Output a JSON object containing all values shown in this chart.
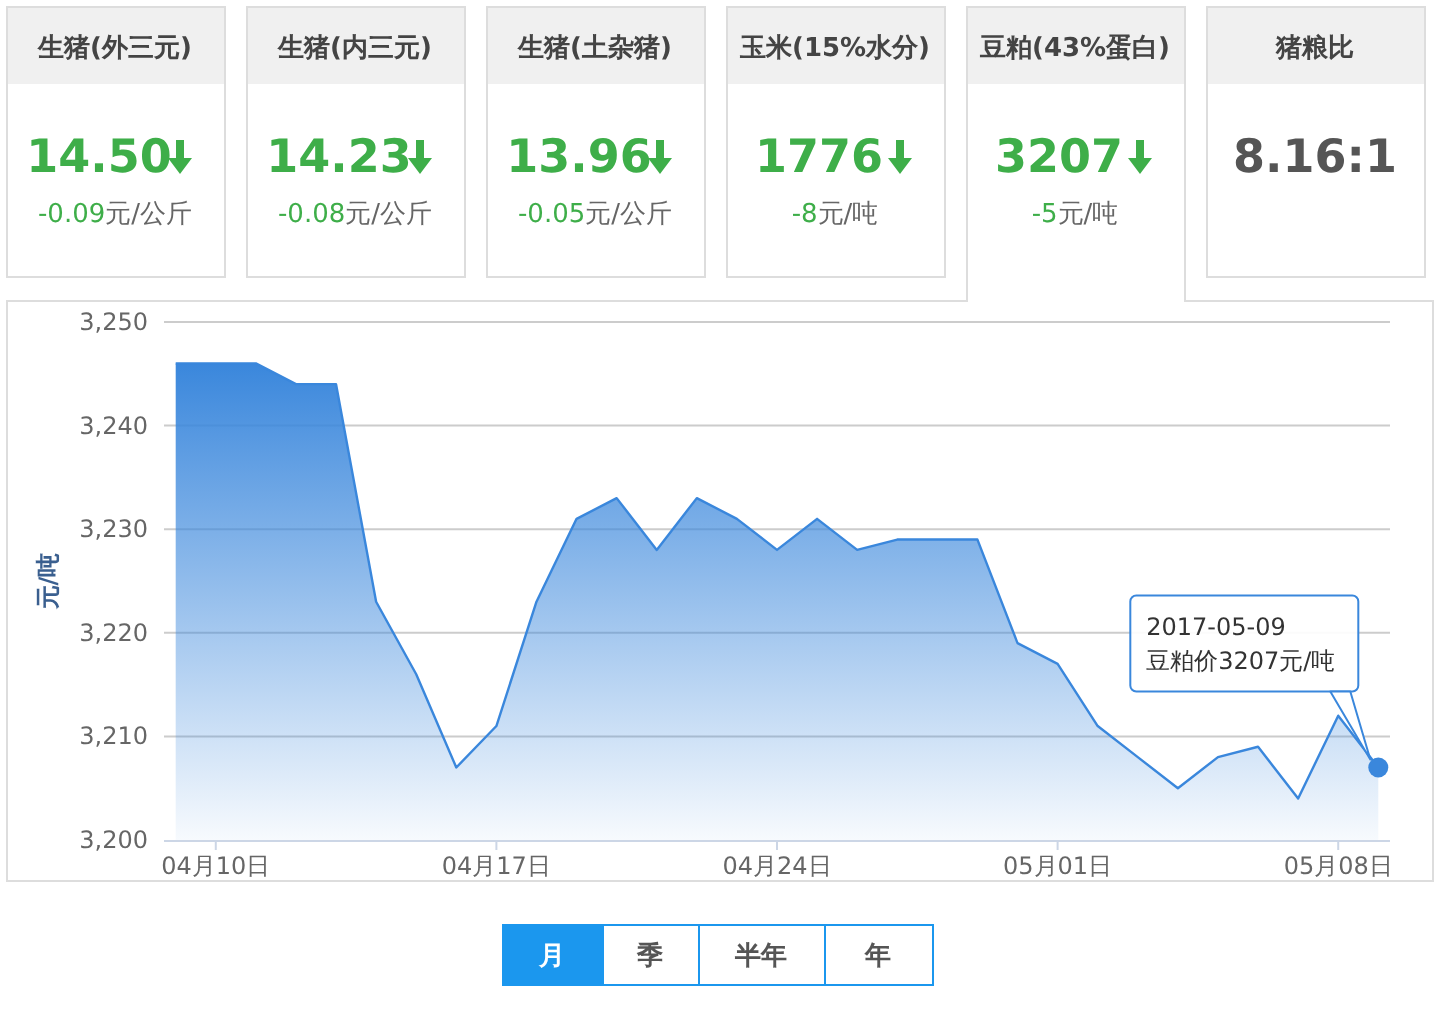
{
  "chart_data": [
    {
      "type": "other",
      "categories": [
        "生猪(外三元)",
        "生猪(内三元)",
        "生猪(土杂猪)",
        "玉米(15%水分)",
        "豆粕(43%蛋白)",
        "猪粮比"
      ],
      "value_labels": [
        "14.50",
        "14.23",
        "13.96",
        "1776",
        "3207",
        "8.16:1"
      ],
      "annotations": [
        "-0.09元/公斤",
        "-0.08元/公斤",
        "-0.05元/公斤",
        "-8元/吨",
        "-5元/吨"
      ]
    },
    {
      "type": "area",
      "ylabel": "元/吨",
      "color": "#3a87dc",
      "grid": "y",
      "x": [
        "2017-04-09",
        "2017-04-10",
        "2017-04-11",
        "2017-04-12",
        "2017-04-13",
        "2017-04-14",
        "2017-04-15",
        "2017-04-16",
        "2017-04-17",
        "2017-04-18",
        "2017-04-19",
        "2017-04-20",
        "2017-04-21",
        "2017-04-22",
        "2017-04-23",
        "2017-04-24",
        "2017-04-25",
        "2017-04-26",
        "2017-04-27",
        "2017-04-28",
        "2017-04-29",
        "2017-04-30",
        "2017-05-01",
        "2017-05-02",
        "2017-05-03",
        "2017-05-04",
        "2017-05-05",
        "2017-05-06",
        "2017-05-07",
        "2017-05-08",
        "2017-05-09"
      ],
      "values": [
        3246,
        3246,
        3246,
        3244,
        3244,
        3223,
        3216,
        3207,
        3211,
        3223,
        3231,
        3233,
        3228,
        3233,
        3231,
        3228,
        3231,
        3228,
        3229,
        3229,
        3229,
        3219,
        3217,
        3211,
        3208,
        3205,
        3208,
        3209,
        3204,
        3212,
        3207
      ],
      "xlim": [
        "2017-04-08T17:00",
        "2017-05-09T07:00"
      ],
      "xticks": [
        {
          "value": "2017-04-10",
          "label": "04月10日"
        },
        {
          "value": "2017-04-17",
          "label": "04月17日"
        },
        {
          "value": "2017-04-24",
          "label": "04月24日"
        },
        {
          "value": "2017-05-01",
          "label": "05月01日"
        },
        {
          "value": "2017-05-08",
          "label": "05月08日"
        }
      ],
      "ylim": [
        3200,
        3250
      ],
      "yticks": [
        {
          "value": 3200,
          "label": "3,200"
        },
        {
          "value": 3210,
          "label": "3,210"
        },
        {
          "value": 3220,
          "label": "3,220"
        },
        {
          "value": 3230,
          "label": "3,230"
        },
        {
          "value": 3240,
          "label": "3,240"
        },
        {
          "value": 3250,
          "label": "3,250"
        }
      ],
      "annotations": [
        "2017-05-09\n豆粕价3207元/吨",
        "月",
        "季",
        "半年",
        "年"
      ]
    }
  ]
}
